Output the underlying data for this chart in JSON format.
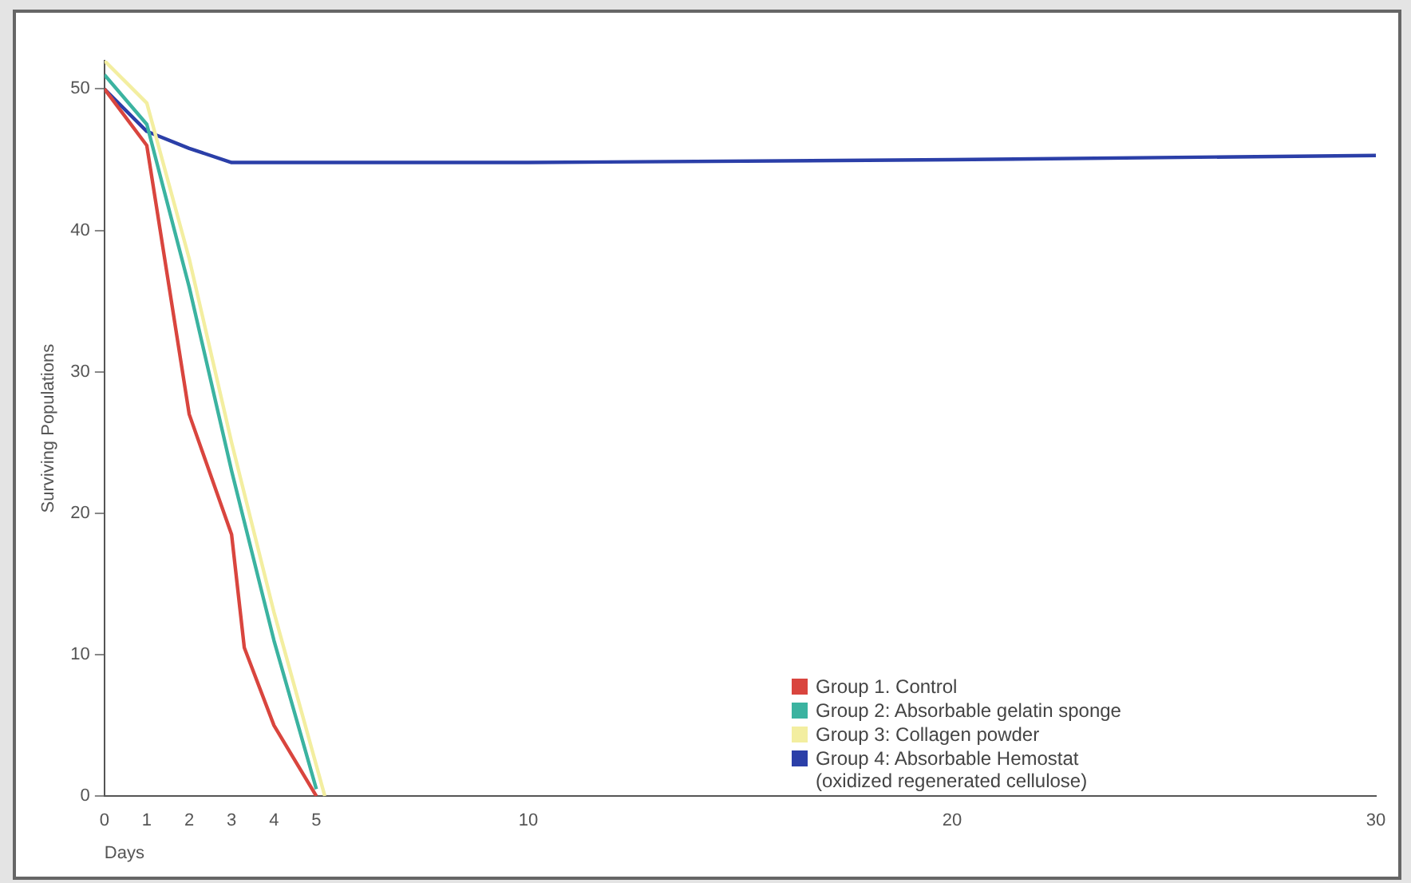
{
  "chart_data": {
    "type": "line",
    "xlabel": "Days",
    "ylabel": "Surviving Populations",
    "xlim": [
      0,
      30
    ],
    "xticks": [
      0,
      1,
      2,
      3,
      4,
      5,
      10,
      20,
      30
    ],
    "ylim": [
      0,
      52
    ],
    "yticks": [
      0,
      10,
      20,
      30,
      40,
      50
    ],
    "grid": false,
    "legend": "bottom right",
    "marker": "none",
    "line_style": "solid",
    "series": [
      {
        "name": "Group 1. Control",
        "color": "#d9453e",
        "x": [
          0,
          1,
          2,
          3,
          3.3,
          4,
          5
        ],
        "values": [
          50,
          46,
          27,
          18.5,
          10.5,
          5,
          0
        ]
      },
      {
        "name": "Group 2: Absorbable gelatin sponge",
        "color": "#3bb3a0",
        "x": [
          0,
          1,
          2,
          3,
          4,
          5
        ],
        "values": [
          51,
          47.5,
          36,
          23,
          11,
          0.5
        ]
      },
      {
        "name": "Group 3: Collagen powder",
        "color": "#f3eea0",
        "x": [
          0,
          1,
          2,
          3,
          4,
          5.2
        ],
        "values": [
          52,
          49,
          38,
          25,
          13,
          0
        ]
      },
      {
        "name": "Group 4: Absorbable Hemostat (oxidized regenerated cellulose)",
        "color": "#2b3fa8",
        "x": [
          0,
          1,
          2,
          3,
          10,
          20,
          30
        ],
        "values": [
          50,
          47,
          45.8,
          44.8,
          44.8,
          45,
          45.3
        ]
      }
    ]
  }
}
